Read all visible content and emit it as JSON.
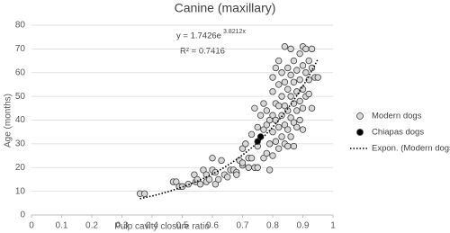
{
  "chart_data": {
    "type": "scatter",
    "title": "Canine (maxillary)",
    "x_label": "Pulp cavity closure ratio",
    "y_label": "Age (months)",
    "xlim": [
      0,
      1
    ],
    "xticks": [
      0,
      0.1,
      0.2,
      0.3,
      0.4,
      0.5,
      0.6,
      0.7,
      0.8,
      0.9,
      1
    ],
    "ylim": [
      0,
      80
    ],
    "yticks": [
      0,
      10,
      20,
      30,
      40,
      50,
      60,
      70,
      80
    ],
    "grid": true,
    "legend": "right",
    "series": [
      {
        "name": "Modern dogs",
        "color": "#d9d9d9",
        "x": [
          0.36,
          0.375,
          0.47,
          0.48,
          0.49,
          0.5,
          0.52,
          0.54,
          0.545,
          0.55,
          0.56,
          0.57,
          0.58,
          0.58,
          0.59,
          0.6,
          0.6,
          0.61,
          0.61,
          0.62,
          0.63,
          0.64,
          0.65,
          0.66,
          0.67,
          0.68,
          0.68,
          0.69,
          0.7,
          0.7,
          0.7,
          0.71,
          0.72,
          0.72,
          0.73,
          0.73,
          0.74,
          0.74,
          0.75,
          0.75,
          0.75,
          0.76,
          0.76,
          0.77,
          0.77,
          0.77,
          0.78,
          0.78,
          0.78,
          0.79,
          0.79,
          0.79,
          0.8,
          0.8,
          0.8,
          0.8,
          0.8,
          0.81,
          0.81,
          0.81,
          0.81,
          0.82,
          0.82,
          0.82,
          0.82,
          0.82,
          0.83,
          0.83,
          0.83,
          0.83,
          0.84,
          0.84,
          0.84,
          0.84,
          0.84,
          0.85,
          0.85,
          0.85,
          0.85,
          0.85,
          0.86,
          0.86,
          0.86,
          0.86,
          0.86,
          0.87,
          0.87,
          0.87,
          0.87,
          0.87,
          0.88,
          0.88,
          0.88,
          0.88,
          0.89,
          0.89,
          0.89,
          0.89,
          0.9,
          0.9,
          0.9,
          0.9,
          0.9,
          0.91,
          0.91,
          0.91,
          0.92,
          0.92,
          0.92,
          0.93,
          0.93,
          0.93,
          0.94,
          0.95
        ],
        "values": [
          9,
          9,
          14,
          14,
          12,
          12,
          13,
          17,
          14,
          15,
          13,
          19,
          17,
          14,
          15,
          19,
          24,
          18,
          13,
          15,
          23,
          17,
          16,
          19,
          19,
          18,
          17,
          23,
          28,
          21,
          22,
          30,
          24,
          20,
          24,
          34,
          45,
          20,
          37,
          29,
          20,
          42,
          33,
          36,
          24,
          47,
          44,
          38,
          26,
          19,
          40,
          30,
          52,
          42,
          35,
          25,
          58,
          47,
          40,
          31,
          62,
          55,
          46,
          37,
          28,
          65,
          60,
          50,
          42,
          33,
          71,
          56,
          46,
          38,
          30,
          62,
          53,
          44,
          36,
          29,
          70,
          59,
          50,
          41,
          33,
          65,
          56,
          47,
          39,
          29,
          61,
          52,
          44,
          37,
          68,
          57,
          48,
          40,
          71,
          63,
          53,
          45,
          36,
          70,
          60,
          50,
          65,
          57,
          51,
          70,
          62,
          45,
          58,
          58
        ]
      },
      {
        "name": "Chiapas dogs",
        "color": "#000000",
        "x": [
          0.75,
          0.76
        ],
        "values": [
          31,
          33
        ]
      }
    ],
    "trendline": {
      "name": "Expon. (Modern dogs)",
      "a": 1.7426,
      "b": 3.8212,
      "color": "#000000"
    },
    "annotations": {
      "equation": "y = 1.7426e",
      "equation_exponent": "3.8212x",
      "r_squared": "R² = 0.7416"
    }
  }
}
